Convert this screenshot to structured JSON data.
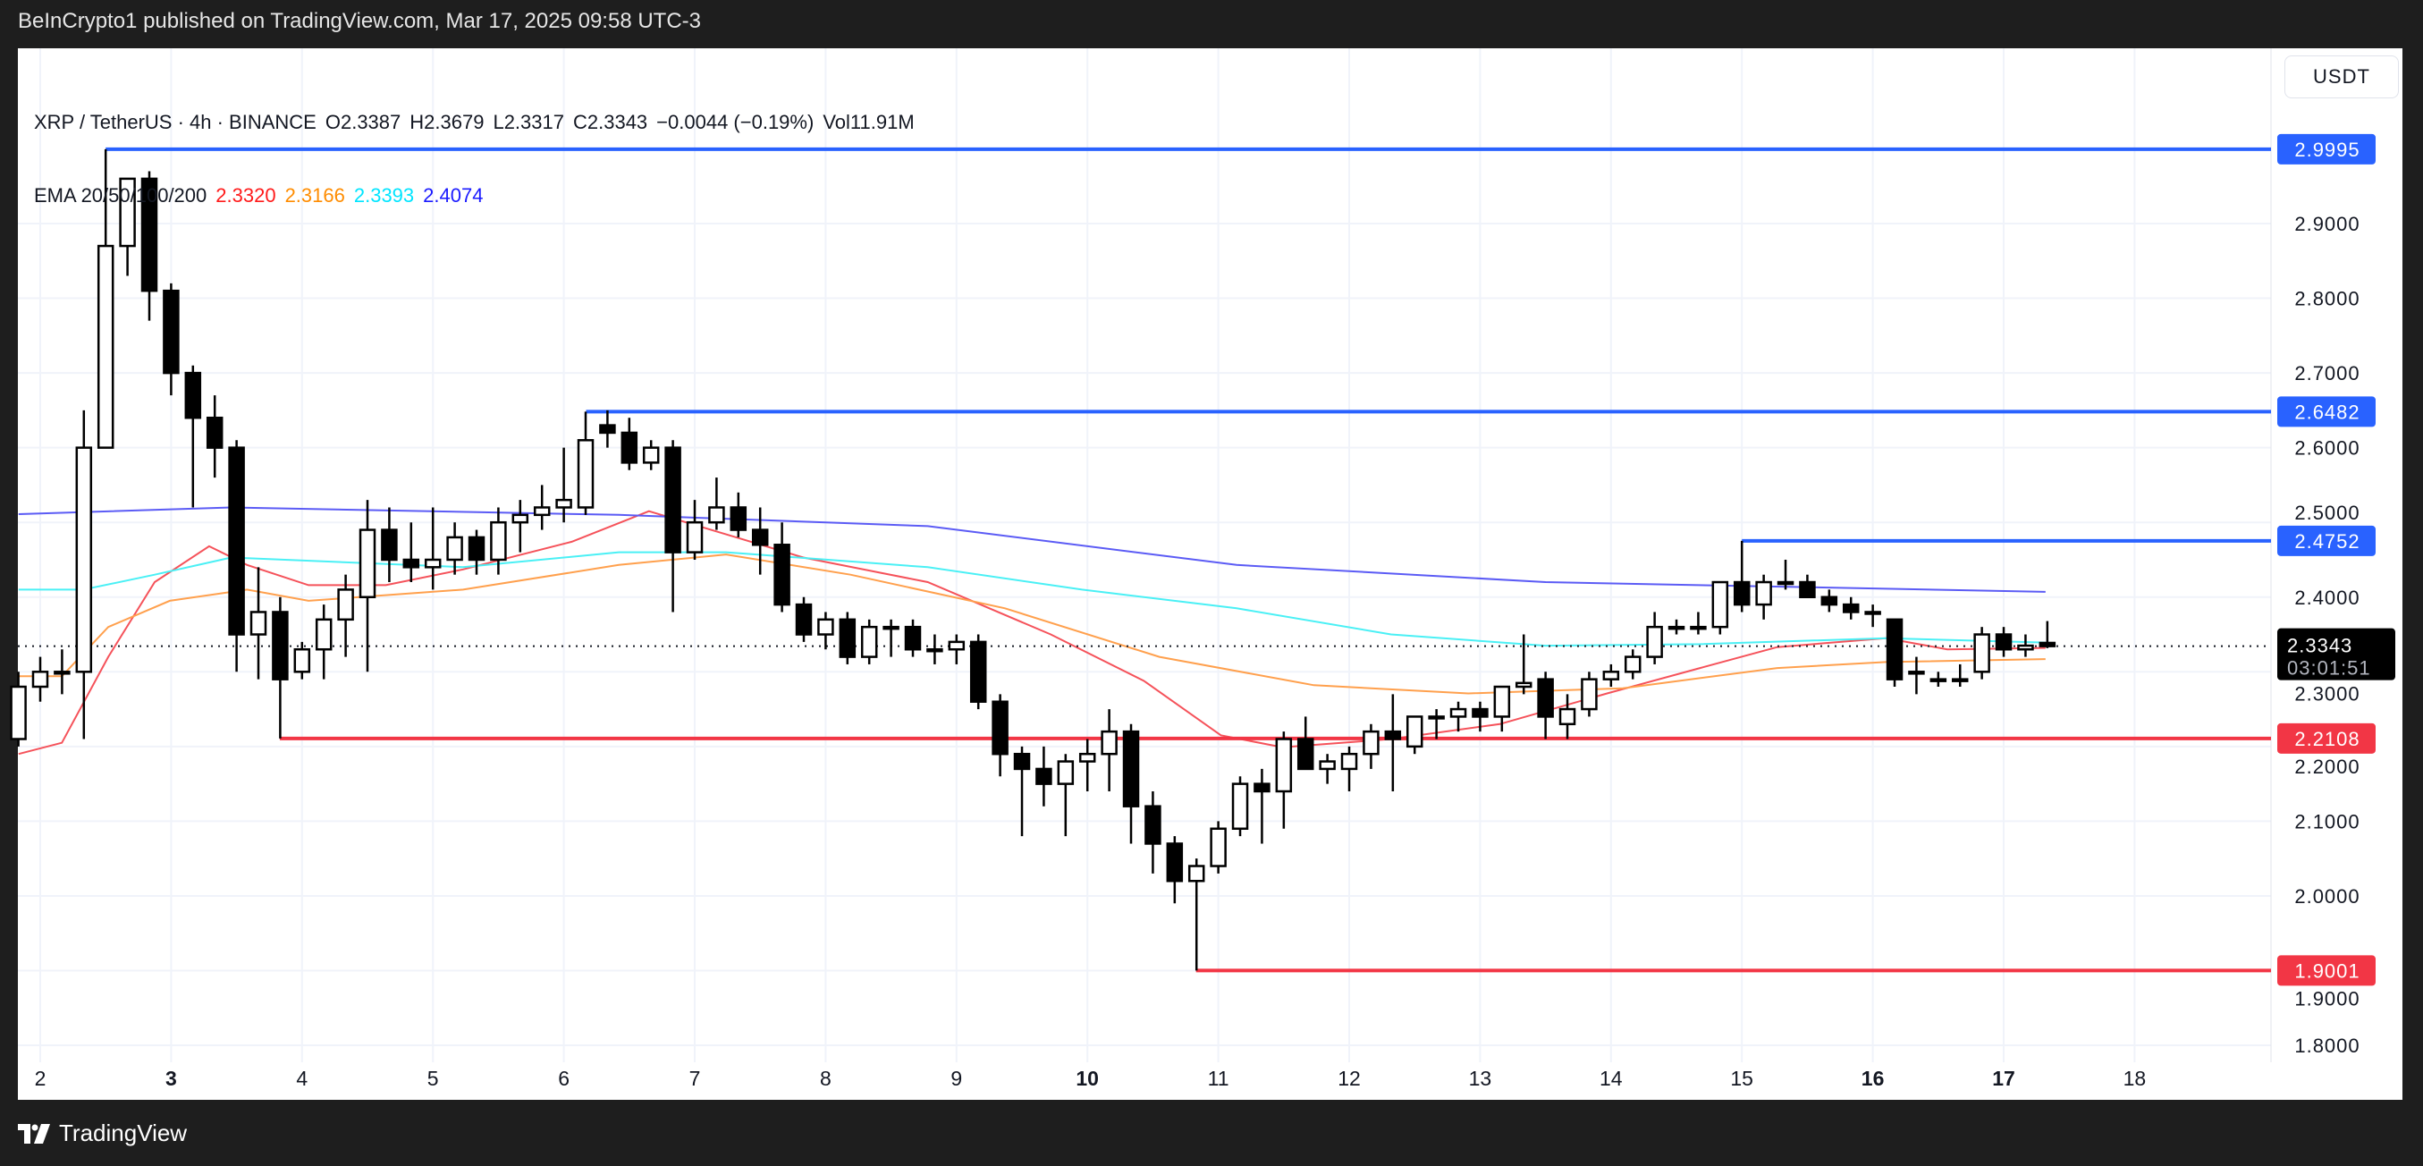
{
  "publisher": "BeInCrypto1 published on TradingView.com, Mar 17, 2025 09:58 UTC-3",
  "legend": {
    "symbol": "XRP / TetherUS · 4h · BINANCE",
    "open": "O2.3387",
    "high": "H2.3679",
    "low": "L2.3317",
    "close": "C2.3343",
    "change": "−0.0044 (−0.19%)",
    "volume": "Vol11.91M",
    "ema_label": "EMA 20/50/100/200",
    "ema_values": [
      "2.3320",
      "2.3166",
      "2.3393",
      "2.4074"
    ]
  },
  "currency_button": "USDT",
  "footer_logo": "TradingView",
  "colors": {
    "up_fill": "#ffffff",
    "down_fill": "#000000",
    "resistance": "#2962ff",
    "support": "#f23645",
    "ema20": "#f5525a",
    "ema50": "#ffa04d",
    "ema100": "#4af0f5",
    "ema200": "#5b5bf5",
    "ema20_text": "#ff1a1a",
    "ema50_text": "#ff8c00",
    "ema100_text": "#00e5ff",
    "ema200_text": "#1a1aff"
  },
  "chart_data": {
    "type": "candlestick",
    "title": "XRP / TetherUS · 4h · BINANCE",
    "ylabel": "USDT",
    "ylim": [
      1.75,
      3.06
    ],
    "xlim": [
      1.75,
      18.9
    ],
    "x_unit": "day of March 2025",
    "y_ticks": [
      "2.9000",
      "2.8000",
      "2.7000",
      "2.6000",
      "2.5000",
      "2.4000",
      "2.3000",
      "2.2000",
      "2.1000",
      "2.0000",
      "1.9000",
      "1.8000"
    ],
    "x_ticks": [
      {
        "day": 2,
        "label": "2",
        "bold": false
      },
      {
        "day": 3,
        "label": "3",
        "bold": true
      },
      {
        "day": 4,
        "label": "4",
        "bold": false
      },
      {
        "day": 5,
        "label": "5",
        "bold": false
      },
      {
        "day": 6,
        "label": "6",
        "bold": false
      },
      {
        "day": 7,
        "label": "7",
        "bold": false
      },
      {
        "day": 8,
        "label": "8",
        "bold": false
      },
      {
        "day": 9,
        "label": "9",
        "bold": false
      },
      {
        "day": 10,
        "label": "10",
        "bold": true
      },
      {
        "day": 11,
        "label": "11",
        "bold": false
      },
      {
        "day": 12,
        "label": "12",
        "bold": false
      },
      {
        "day": 13,
        "label": "13",
        "bold": false
      },
      {
        "day": 14,
        "label": "14",
        "bold": false
      },
      {
        "day": 15,
        "label": "15",
        "bold": false
      },
      {
        "day": 16,
        "label": "16",
        "bold": true
      },
      {
        "day": 17,
        "label": "17",
        "bold": true
      },
      {
        "day": 18,
        "label": "18",
        "bold": false
      }
    ],
    "candle_start_day": 1.8333,
    "candle_interval_days": 0.16667,
    "candles_ohlc": [
      [
        2.21,
        2.3,
        2.2,
        2.28
      ],
      [
        2.28,
        2.32,
        2.26,
        2.3
      ],
      [
        2.3,
        2.33,
        2.27,
        2.3
      ],
      [
        2.3,
        2.65,
        2.21,
        2.6
      ],
      [
        2.6,
        2.9995,
        2.6,
        2.87
      ],
      [
        2.87,
        2.96,
        2.83,
        2.96
      ],
      [
        2.96,
        2.97,
        2.77,
        2.81
      ],
      [
        2.81,
        2.82,
        2.67,
        2.7
      ],
      [
        2.7,
        2.71,
        2.52,
        2.64
      ],
      [
        2.64,
        2.67,
        2.56,
        2.6
      ],
      [
        2.6,
        2.61,
        2.3,
        2.35
      ],
      [
        2.35,
        2.44,
        2.29,
        2.38
      ],
      [
        2.38,
        2.4,
        2.2108,
        2.29
      ],
      [
        2.3,
        2.34,
        2.29,
        2.33
      ],
      [
        2.33,
        2.39,
        2.29,
        2.37
      ],
      [
        2.37,
        2.43,
        2.32,
        2.41
      ],
      [
        2.4,
        2.53,
        2.3,
        2.49
      ],
      [
        2.49,
        2.52,
        2.42,
        2.45
      ],
      [
        2.45,
        2.5,
        2.42,
        2.44
      ],
      [
        2.44,
        2.52,
        2.41,
        2.45
      ],
      [
        2.45,
        2.5,
        2.43,
        2.48
      ],
      [
        2.48,
        2.49,
        2.43,
        2.45
      ],
      [
        2.45,
        2.52,
        2.43,
        2.5
      ],
      [
        2.5,
        2.53,
        2.46,
        2.51
      ],
      [
        2.51,
        2.55,
        2.49,
        2.52
      ],
      [
        2.52,
        2.6,
        2.5,
        2.53
      ],
      [
        2.52,
        2.6482,
        2.51,
        2.61
      ],
      [
        2.63,
        2.65,
        2.6,
        2.62
      ],
      [
        2.62,
        2.64,
        2.57,
        2.58
      ],
      [
        2.58,
        2.61,
        2.57,
        2.6
      ],
      [
        2.6,
        2.61,
        2.38,
        2.46
      ],
      [
        2.46,
        2.53,
        2.45,
        2.5
      ],
      [
        2.5,
        2.56,
        2.49,
        2.52
      ],
      [
        2.52,
        2.54,
        2.48,
        2.49
      ],
      [
        2.49,
        2.52,
        2.43,
        2.47
      ],
      [
        2.47,
        2.5,
        2.38,
        2.39
      ],
      [
        2.39,
        2.4,
        2.34,
        2.35
      ],
      [
        2.35,
        2.38,
        2.33,
        2.37
      ],
      [
        2.37,
        2.38,
        2.31,
        2.32
      ],
      [
        2.32,
        2.37,
        2.31,
        2.36
      ],
      [
        2.36,
        2.37,
        2.32,
        2.36
      ],
      [
        2.36,
        2.37,
        2.32,
        2.33
      ],
      [
        2.33,
        2.35,
        2.31,
        2.33
      ],
      [
        2.33,
        2.35,
        2.31,
        2.34
      ],
      [
        2.34,
        2.35,
        2.25,
        2.26
      ],
      [
        2.26,
        2.27,
        2.16,
        2.19
      ],
      [
        2.19,
        2.2,
        2.08,
        2.17
      ],
      [
        2.17,
        2.2,
        2.12,
        2.15
      ],
      [
        2.15,
        2.19,
        2.08,
        2.18
      ],
      [
        2.18,
        2.21,
        2.14,
        2.19
      ],
      [
        2.19,
        2.25,
        2.14,
        2.22
      ],
      [
        2.22,
        2.23,
        2.07,
        2.12
      ],
      [
        2.12,
        2.14,
        2.03,
        2.07
      ],
      [
        2.07,
        2.08,
        1.99,
        2.02
      ],
      [
        2.02,
        2.05,
        1.9001,
        2.04
      ],
      [
        2.04,
        2.1,
        2.03,
        2.09
      ],
      [
        2.09,
        2.16,
        2.08,
        2.15
      ],
      [
        2.15,
        2.17,
        2.07,
        2.14
      ],
      [
        2.14,
        2.22,
        2.09,
        2.21
      ],
      [
        2.21,
        2.24,
        2.17,
        2.17
      ],
      [
        2.17,
        2.19,
        2.15,
        2.18
      ],
      [
        2.17,
        2.2,
        2.14,
        2.19
      ],
      [
        2.19,
        2.23,
        2.17,
        2.22
      ],
      [
        2.22,
        2.27,
        2.14,
        2.21
      ],
      [
        2.2,
        2.24,
        2.19,
        2.24
      ],
      [
        2.24,
        2.25,
        2.21,
        2.24
      ],
      [
        2.24,
        2.26,
        2.22,
        2.25
      ],
      [
        2.25,
        2.26,
        2.22,
        2.24
      ],
      [
        2.24,
        2.28,
        2.22,
        2.28
      ],
      [
        2.28,
        2.35,
        2.27,
        2.285
      ],
      [
        2.29,
        2.3,
        2.21,
        2.24
      ],
      [
        2.23,
        2.27,
        2.21,
        2.25
      ],
      [
        2.25,
        2.3,
        2.24,
        2.29
      ],
      [
        2.29,
        2.31,
        2.28,
        2.3
      ],
      [
        2.3,
        2.33,
        2.29,
        2.32
      ],
      [
        2.32,
        2.38,
        2.31,
        2.36
      ],
      [
        2.36,
        2.37,
        2.35,
        2.36
      ],
      [
        2.36,
        2.38,
        2.35,
        2.36
      ],
      [
        2.36,
        2.42,
        2.35,
        2.42
      ],
      [
        2.42,
        2.4752,
        2.38,
        2.39
      ],
      [
        2.39,
        2.43,
        2.37,
        2.42
      ],
      [
        2.42,
        2.45,
        2.41,
        2.42
      ],
      [
        2.42,
        2.43,
        2.4,
        2.4
      ],
      [
        2.4,
        2.41,
        2.38,
        2.39
      ],
      [
        2.39,
        2.4,
        2.37,
        2.38
      ],
      [
        2.38,
        2.39,
        2.36,
        2.38
      ],
      [
        2.37,
        2.37,
        2.28,
        2.29
      ],
      [
        2.3,
        2.32,
        2.27,
        2.3
      ],
      [
        2.29,
        2.3,
        2.28,
        2.29
      ],
      [
        2.29,
        2.31,
        2.28,
        2.29
      ],
      [
        2.3,
        2.36,
        2.29,
        2.35
      ],
      [
        2.35,
        2.36,
        2.32,
        2.33
      ],
      [
        2.33,
        2.35,
        2.32,
        2.335
      ],
      [
        2.3387,
        2.3679,
        2.3317,
        2.3343
      ]
    ],
    "ema": [
      {
        "name": "EMA 20",
        "color_key": "ema20",
        "points": [
          [
            1.835,
            2.19
          ],
          [
            2.165,
            2.205
          ],
          [
            2.52,
            2.32
          ],
          [
            2.874,
            2.42
          ],
          [
            3.29,
            2.468
          ],
          [
            3.58,
            2.443
          ],
          [
            4.05,
            2.416
          ],
          [
            4.64,
            2.416
          ],
          [
            5.23,
            2.437
          ],
          [
            6.06,
            2.474
          ],
          [
            6.65,
            2.515
          ],
          [
            7.24,
            2.484
          ],
          [
            7.83,
            2.453
          ],
          [
            8.78,
            2.42
          ],
          [
            9.72,
            2.35
          ],
          [
            10.43,
            2.288
          ],
          [
            11.02,
            2.215
          ],
          [
            11.49,
            2.199
          ],
          [
            12.32,
            2.21
          ],
          [
            13.15,
            2.23
          ],
          [
            13.97,
            2.271
          ],
          [
            14.68,
            2.305
          ],
          [
            15.27,
            2.333
          ],
          [
            16.1,
            2.345
          ],
          [
            16.57,
            2.33
          ],
          [
            17.32,
            2.332
          ]
        ]
      },
      {
        "name": "EMA 50",
        "color_key": "ema50",
        "points": [
          [
            1.835,
            2.294
          ],
          [
            2.165,
            2.294
          ],
          [
            2.52,
            2.36
          ],
          [
            2.99,
            2.395
          ],
          [
            3.58,
            2.41
          ],
          [
            4.05,
            2.395
          ],
          [
            5.23,
            2.41
          ],
          [
            6.42,
            2.443
          ],
          [
            7.24,
            2.457
          ],
          [
            8.19,
            2.43
          ],
          [
            9.37,
            2.385
          ],
          [
            10.55,
            2.32
          ],
          [
            11.73,
            2.282
          ],
          [
            12.91,
            2.271
          ],
          [
            14.09,
            2.278
          ],
          [
            15.27,
            2.305
          ],
          [
            16.1,
            2.313
          ],
          [
            17.32,
            2.317
          ]
        ]
      },
      {
        "name": "EMA 100",
        "color_key": "ema100",
        "points": [
          [
            1.835,
            2.41
          ],
          [
            2.33,
            2.41
          ],
          [
            2.874,
            2.43
          ],
          [
            3.46,
            2.453
          ],
          [
            5.23,
            2.44
          ],
          [
            6.42,
            2.46
          ],
          [
            7.24,
            2.46
          ],
          [
            8.78,
            2.44
          ],
          [
            9.96,
            2.41
          ],
          [
            11.14,
            2.385
          ],
          [
            12.32,
            2.35
          ],
          [
            13.5,
            2.335
          ],
          [
            14.68,
            2.337
          ],
          [
            16.1,
            2.345
          ],
          [
            17.32,
            2.339
          ]
        ]
      },
      {
        "name": "EMA 200",
        "color_key": "ema200",
        "points": [
          [
            1.835,
            2.511
          ],
          [
            3.46,
            2.52
          ],
          [
            6.42,
            2.51
          ],
          [
            8.78,
            2.495
          ],
          [
            11.14,
            2.443
          ],
          [
            13.5,
            2.42
          ],
          [
            17.32,
            2.407
          ]
        ]
      }
    ],
    "levels": [
      {
        "price": 2.9995,
        "label": "2.9995",
        "from_day": 2.5,
        "type": "resistance"
      },
      {
        "price": 2.6482,
        "label": "2.6482",
        "from_day": 6.17,
        "type": "resistance"
      },
      {
        "price": 2.4752,
        "label": "2.4752",
        "from_day": 15.0,
        "type": "resistance"
      },
      {
        "price": 2.2108,
        "label": "2.2108",
        "from_day": 3.83,
        "type": "support"
      },
      {
        "price": 1.9001,
        "label": "1.9001",
        "from_day": 10.83,
        "type": "support"
      }
    ],
    "last_price": {
      "price": 2.3343,
      "label": "2.3343",
      "countdown": "03:01:51"
    }
  }
}
